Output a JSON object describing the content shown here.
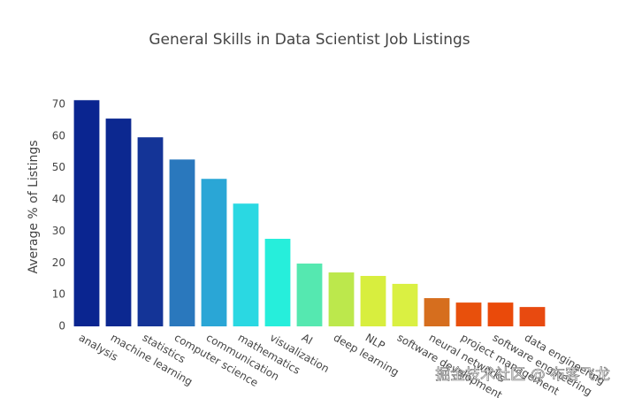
{
  "chart_data": {
    "type": "bar",
    "title": "General Skills in Data Scientist Job Listings",
    "y_label": "Average % of Listings",
    "categories": [
      "analysis",
      "machine learning",
      "statistics",
      "computer science",
      "communication",
      "mathematics",
      "visualization",
      "AI",
      "deep learning",
      "NLP",
      "software development",
      "neural networks",
      "project management",
      "software engineering",
      "data engineering"
    ],
    "values": [
      71.3,
      65.5,
      59.6,
      52.6,
      46.5,
      38.7,
      27.6,
      19.8,
      17.0,
      15.9,
      13.4,
      8.9,
      7.5,
      7.5,
      6.1
    ],
    "colors": [
      "#0a2590",
      "#0c2890",
      "#143497",
      "#2a78bd",
      "#2aa6d6",
      "#2ad8e2",
      "#26eedb",
      "#55e8b0",
      "#bce84c",
      "#d8ee3e",
      "#daf042",
      "#d66e1e",
      "#e8500c",
      "#ea4a0a",
      "#e84a10"
    ],
    "ylim": [
      0,
      75
    ],
    "yticks": [
      0,
      10,
      20,
      30,
      40,
      50,
      60,
      70
    ],
    "grid": false,
    "watermark": "掘金技术社区 @ 布客飞龙"
  }
}
